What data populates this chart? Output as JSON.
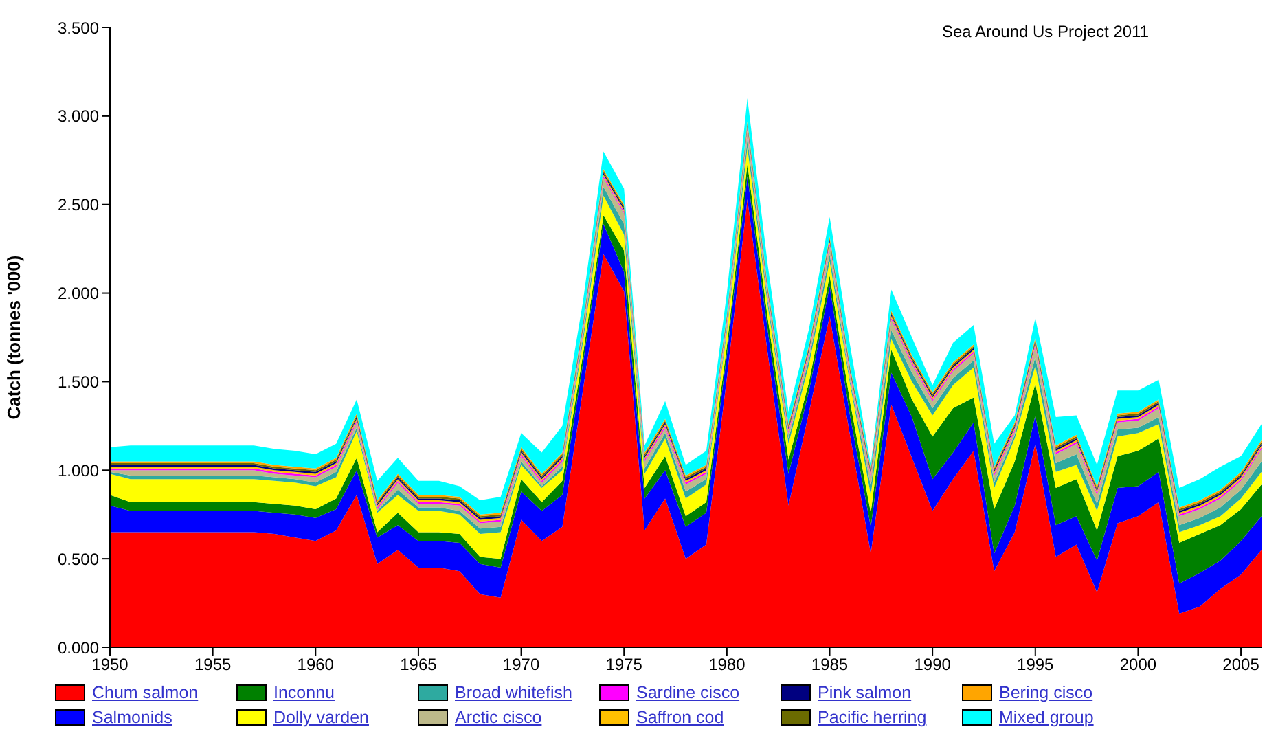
{
  "chart_data": {
    "type": "area",
    "stacked": true,
    "ylabel": "Catch (tonnes '000)",
    "annotations": [
      "Sea Around Us Project 2011"
    ],
    "legend": "bottom",
    "x": [
      1950,
      1951,
      1952,
      1953,
      1954,
      1955,
      1956,
      1957,
      1958,
      1959,
      1960,
      1961,
      1962,
      1963,
      1964,
      1965,
      1966,
      1967,
      1968,
      1969,
      1970,
      1971,
      1972,
      1973,
      1974,
      1975,
      1976,
      1977,
      1978,
      1979,
      1980,
      1981,
      1982,
      1983,
      1984,
      1985,
      1986,
      1987,
      1988,
      1989,
      1990,
      1991,
      1992,
      1993,
      1994,
      1995,
      1996,
      1997,
      1998,
      1999,
      2000,
      2001,
      2002,
      2003,
      2004,
      2005,
      2006
    ],
    "xlim": [
      1950,
      2006
    ],
    "xticks": [
      1950,
      1955,
      1960,
      1965,
      1970,
      1975,
      1980,
      1985,
      1990,
      1995,
      2000,
      2005
    ],
    "ylim": [
      0,
      3.5
    ],
    "yticks": [
      {
        "value": 0,
        "label": "0.000"
      },
      {
        "value": 0.5,
        "label": "0.500"
      },
      {
        "value": 1,
        "label": "1.000"
      },
      {
        "value": 1.5,
        "label": "1.500"
      },
      {
        "value": 2,
        "label": "2.000"
      },
      {
        "value": 2.5,
        "label": "2.500"
      },
      {
        "value": 3,
        "label": "3.000"
      },
      {
        "value": 3.5,
        "label": "3.500"
      }
    ],
    "series": [
      {
        "name": "Chum salmon",
        "color": "#ff0000",
        "values": [
          0.65,
          0.65,
          0.65,
          0.65,
          0.65,
          0.65,
          0.65,
          0.65,
          0.64,
          0.62,
          0.6,
          0.66,
          0.86,
          0.47,
          0.55,
          0.45,
          0.45,
          0.43,
          0.3,
          0.28,
          0.72,
          0.6,
          0.68,
          1.45,
          2.22,
          2.01,
          0.66,
          0.84,
          0.5,
          0.58,
          1.52,
          2.53,
          1.65,
          0.8,
          1.33,
          1.87,
          1.19,
          0.53,
          1.37,
          1.07,
          0.77,
          0.95,
          1.11,
          0.43,
          0.65,
          1.15,
          0.51,
          0.58,
          0.31,
          0.7,
          0.74,
          0.82,
          0.19,
          0.23,
          0.33,
          0.41,
          0.55
        ]
      },
      {
        "name": "Salmonids",
        "color": "#0000ff",
        "values": [
          0.15,
          0.12,
          0.12,
          0.12,
          0.12,
          0.12,
          0.12,
          0.12,
          0.12,
          0.13,
          0.13,
          0.12,
          0.14,
          0.15,
          0.14,
          0.15,
          0.15,
          0.16,
          0.17,
          0.17,
          0.16,
          0.17,
          0.18,
          0.15,
          0.17,
          0.11,
          0.18,
          0.16,
          0.18,
          0.18,
          0.13,
          0.13,
          0.13,
          0.18,
          0.12,
          0.17,
          0.11,
          0.15,
          0.18,
          0.23,
          0.18,
          0.15,
          0.16,
          0.1,
          0.15,
          0.16,
          0.18,
          0.16,
          0.18,
          0.2,
          0.17,
          0.17,
          0.17,
          0.19,
          0.16,
          0.19,
          0.19
        ]
      },
      {
        "name": "Inconnu",
        "color": "#008000",
        "values": [
          0.06,
          0.05,
          0.05,
          0.05,
          0.05,
          0.05,
          0.05,
          0.05,
          0.05,
          0.05,
          0.05,
          0.06,
          0.07,
          0.03,
          0.07,
          0.05,
          0.05,
          0.05,
          0.04,
          0.05,
          0.07,
          0.05,
          0.08,
          0.05,
          0.05,
          0.12,
          0.06,
          0.08,
          0.06,
          0.06,
          0.05,
          0.07,
          0.07,
          0.08,
          0.05,
          0.06,
          0.08,
          0.08,
          0.13,
          0.1,
          0.24,
          0.25,
          0.14,
          0.25,
          0.25,
          0.18,
          0.21,
          0.21,
          0.17,
          0.18,
          0.2,
          0.19,
          0.23,
          0.22,
          0.2,
          0.18,
          0.18
        ]
      },
      {
        "name": "Dolly varden",
        "color": "#ffff00",
        "values": [
          0.12,
          0.13,
          0.13,
          0.13,
          0.13,
          0.13,
          0.13,
          0.13,
          0.13,
          0.13,
          0.13,
          0.12,
          0.15,
          0.11,
          0.1,
          0.12,
          0.12,
          0.11,
          0.13,
          0.15,
          0.08,
          0.08,
          0.06,
          0.07,
          0.11,
          0.09,
          0.08,
          0.1,
          0.1,
          0.1,
          0.08,
          0.09,
          0.07,
          0.09,
          0.1,
          0.08,
          0.1,
          0.1,
          0.06,
          0.1,
          0.12,
          0.13,
          0.17,
          0.12,
          0.13,
          0.1,
          0.09,
          0.08,
          0.11,
          0.11,
          0.1,
          0.08,
          0.06,
          0.05,
          0.05,
          0.06,
          0.07
        ]
      },
      {
        "name": "Broad whitefish",
        "color": "#2eaaa0",
        "values": [
          0.01,
          0.02,
          0.02,
          0.02,
          0.02,
          0.02,
          0.02,
          0.02,
          0.02,
          0.02,
          0.02,
          0.03,
          0.02,
          0.01,
          0.03,
          0.02,
          0.02,
          0.02,
          0.03,
          0.03,
          0.02,
          0.01,
          0.02,
          0.03,
          0.05,
          0.06,
          0.03,
          0.03,
          0.04,
          0.03,
          0.02,
          0.05,
          0.03,
          0.03,
          0.03,
          0.04,
          0.02,
          0.05,
          0.05,
          0.05,
          0.04,
          0.04,
          0.04,
          0.03,
          0.02,
          0.05,
          0.05,
          0.06,
          0.04,
          0.04,
          0.03,
          0.04,
          0.04,
          0.04,
          0.05,
          0.05,
          0.06
        ]
      },
      {
        "name": "Arctic cisco",
        "color": "#bdb98a",
        "values": [
          0.01,
          0.03,
          0.03,
          0.03,
          0.03,
          0.03,
          0.03,
          0.03,
          0.02,
          0.02,
          0.03,
          0.03,
          0.03,
          0.01,
          0.04,
          0.02,
          0.02,
          0.03,
          0.03,
          0.03,
          0.03,
          0.02,
          0.03,
          0.03,
          0.05,
          0.06,
          0.04,
          0.03,
          0.04,
          0.03,
          0.03,
          0.05,
          0.03,
          0.03,
          0.03,
          0.05,
          0.03,
          0.05,
          0.06,
          0.05,
          0.04,
          0.04,
          0.04,
          0.04,
          0.02,
          0.06,
          0.05,
          0.06,
          0.05,
          0.04,
          0.04,
          0.05,
          0.05,
          0.05,
          0.05,
          0.05,
          0.07
        ]
      },
      {
        "name": "Sardine cisco",
        "color": "#ff00ff",
        "values": [
          0.01,
          0.01,
          0.01,
          0.01,
          0.01,
          0.01,
          0.01,
          0.01,
          0.01,
          0.01,
          0.01,
          0.01,
          0.01,
          0.01,
          0.01,
          0.01,
          0.01,
          0.01,
          0.01,
          0.01,
          0.01,
          0.01,
          0.01,
          0.01,
          0.01,
          0.01,
          0.01,
          0.01,
          0.01,
          0.01,
          0.01,
          0.01,
          0.01,
          0.01,
          0.01,
          0.01,
          0.01,
          0.01,
          0.01,
          0.01,
          0.01,
          0.01,
          0.01,
          0.01,
          0.01,
          0.01,
          0.01,
          0.01,
          0.01,
          0.01,
          0.01,
          0.01,
          0.01,
          0.01,
          0.01,
          0.01,
          0.01
        ]
      },
      {
        "name": "Saffron cod",
        "color": "#ffc000",
        "values": [
          0.01,
          0.01,
          0.01,
          0.01,
          0.01,
          0.01,
          0.01,
          0.01,
          0.01,
          0.01,
          0.01,
          0.01,
          0.01,
          0.01,
          0.01,
          0.01,
          0.01,
          0.01,
          0.01,
          0.01,
          0.01,
          0.01,
          0.01,
          0.01,
          0.01,
          0.01,
          0.01,
          0.01,
          0.01,
          0.01,
          0.01,
          0.01,
          0.01,
          0.01,
          0.01,
          0.01,
          0.01,
          0.01,
          0.01,
          0.01,
          0.01,
          0.01,
          0.01,
          0.01,
          0.01,
          0.01,
          0.01,
          0.01,
          0.01,
          0.01,
          0.01,
          0.01,
          0.01,
          0.01,
          0.01,
          0.01,
          0.01
        ]
      },
      {
        "name": "Pink salmon",
        "color": "#000080",
        "values": [
          0.01,
          0.01,
          0.01,
          0.01,
          0.01,
          0.01,
          0.01,
          0.01,
          0.01,
          0.01,
          0.01,
          0.01,
          0.01,
          0.01,
          0.01,
          0.01,
          0.01,
          0.01,
          0.01,
          0.01,
          0.01,
          0.01,
          0.01,
          0.01,
          0.01,
          0.01,
          0.01,
          0.01,
          0.01,
          0.01,
          0.01,
          0.01,
          0.01,
          0.01,
          0.01,
          0.01,
          0.01,
          0.01,
          0.01,
          0.01,
          0.01,
          0.01,
          0.01,
          0.01,
          0.01,
          0.01,
          0.01,
          0.01,
          0.01,
          0.01,
          0.01,
          0.01,
          0.01,
          0.01,
          0.01,
          0.01,
          0.01
        ]
      },
      {
        "name": "Pacific herring",
        "color": "#6b6b00",
        "values": [
          0.01,
          0.01,
          0.01,
          0.01,
          0.01,
          0.01,
          0.01,
          0.01,
          0.01,
          0.01,
          0.01,
          0.01,
          0.01,
          0.01,
          0.01,
          0.01,
          0.01,
          0.01,
          0.01,
          0.01,
          0.01,
          0.01,
          0.01,
          0.01,
          0.01,
          0.01,
          0.01,
          0.01,
          0.01,
          0.01,
          0.01,
          0.01,
          0.01,
          0.01,
          0.01,
          0.01,
          0.01,
          0.01,
          0.01,
          0.01,
          0.01,
          0.01,
          0.01,
          0.01,
          0.01,
          0.01,
          0.01,
          0.01,
          0.01,
          0.01,
          0.01,
          0.01,
          0.01,
          0.01,
          0.01,
          0.01,
          0.01
        ]
      },
      {
        "name": "Bering cisco",
        "color": "#ffa500",
        "values": [
          0.01,
          0.01,
          0.01,
          0.01,
          0.01,
          0.01,
          0.01,
          0.01,
          0.01,
          0.01,
          0.01,
          0.01,
          0.01,
          0.01,
          0.01,
          0.01,
          0.01,
          0.01,
          0.01,
          0.01,
          0.01,
          0.01,
          0.01,
          0.01,
          0.01,
          0.01,
          0.01,
          0.01,
          0.01,
          0.01,
          0.01,
          0.01,
          0.01,
          0.01,
          0.01,
          0.01,
          0.01,
          0.01,
          0.01,
          0.01,
          0.01,
          0.01,
          0.01,
          0.01,
          0.01,
          0.01,
          0.01,
          0.01,
          0.01,
          0.01,
          0.01,
          0.01,
          0.01,
          0.01,
          0.01,
          0.01,
          0.01
        ]
      },
      {
        "name": "Mixed group",
        "color": "#00ffff",
        "values": [
          0.08,
          0.09,
          0.09,
          0.09,
          0.09,
          0.09,
          0.09,
          0.09,
          0.09,
          0.09,
          0.08,
          0.08,
          0.08,
          0.11,
          0.09,
          0.08,
          0.08,
          0.06,
          0.08,
          0.09,
          0.08,
          0.12,
          0.15,
          0.12,
          0.1,
          0.09,
          0.04,
          0.1,
          0.06,
          0.08,
          0.12,
          0.13,
          0.12,
          0.07,
          0.09,
          0.11,
          0.12,
          0.02,
          0.12,
          0.1,
          0.04,
          0.11,
          0.11,
          0.13,
          0.04,
          0.11,
          0.16,
          0.11,
          0.12,
          0.13,
          0.12,
          0.11,
          0.11,
          0.12,
          0.13,
          0.09,
          0.09
        ]
      }
    ]
  }
}
